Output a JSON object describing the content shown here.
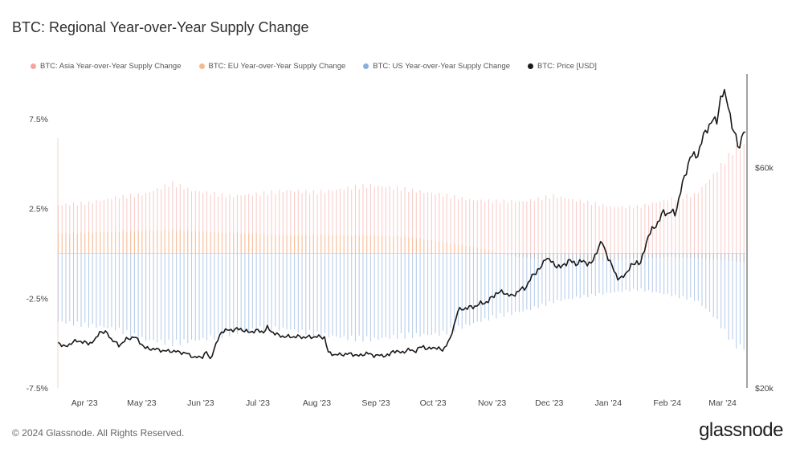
{
  "title": "BTC: Regional Year-over-Year Supply Change",
  "footer": "© 2024 Glassnode. All Rights Reserved.",
  "brand": "glassnode",
  "colors": {
    "asia": "#f4a5a0",
    "eu": "#f5b98a",
    "us": "#8aaee0",
    "price": "#1a1a1a"
  },
  "chart_data": {
    "type": "bar",
    "title": "BTC: Regional Year-over-Year Supply Change",
    "legend": [
      "BTC: Asia Year-over-Year Supply Change",
      "BTC: EU Year-over-Year Supply Change",
      "BTC: US Year-over-Year Supply Change",
      "BTC: Price [USD]"
    ],
    "legend_position": "top-left",
    "grid": false,
    "x_tick_labels": [
      "Apr '23",
      "May '23",
      "Jun '23",
      "Jul '23",
      "Aug '23",
      "Sep '23",
      "Oct '23",
      "Nov '23",
      "Dec '23",
      "Jan '24",
      "Feb '24",
      "Mar '24"
    ],
    "y_left": {
      "range": [
        -7.5,
        10
      ],
      "tick_values": [
        -7.5,
        -2.5,
        2.5,
        7.5
      ],
      "tick_labels": [
        "-7.5%",
        "-2.5%",
        "2.5%",
        "7.5%"
      ]
    },
    "y_right": {
      "range": [
        20000,
        77000
      ],
      "tick_values": [
        20000,
        60000
      ],
      "tick_labels": [
        "$20k",
        "$60k"
      ]
    },
    "x_range_days": [
      0,
      361
    ],
    "series": [
      {
        "name": "BTC: Asia Year-over-Year Supply Change",
        "type": "bar",
        "points": [
          [
            0,
            2.7
          ],
          [
            15,
            2.8
          ],
          [
            30,
            3.1
          ],
          [
            45,
            3.3
          ],
          [
            60,
            3.9
          ],
          [
            70,
            3.5
          ],
          [
            90,
            3.2
          ],
          [
            105,
            3.3
          ],
          [
            120,
            3.5
          ],
          [
            135,
            3.4
          ],
          [
            150,
            3.6
          ],
          [
            165,
            3.8
          ],
          [
            180,
            3.6
          ],
          [
            200,
            3.3
          ],
          [
            215,
            3.0
          ],
          [
            230,
            2.9
          ],
          [
            245,
            2.9
          ],
          [
            260,
            3.2
          ],
          [
            275,
            2.9
          ],
          [
            290,
            2.6
          ],
          [
            305,
            2.6
          ],
          [
            320,
            3.0
          ],
          [
            335,
            3.3
          ],
          [
            345,
            4.5
          ],
          [
            355,
            5.8
          ],
          [
            361,
            6.0
          ]
        ]
      },
      {
        "name": "BTC: EU Year-over-Year Supply Change",
        "type": "bar",
        "points": [
          [
            0,
            1.1
          ],
          [
            30,
            1.2
          ],
          [
            60,
            1.3
          ],
          [
            80,
            1.2
          ],
          [
            100,
            1.1
          ],
          [
            120,
            1.0
          ],
          [
            140,
            1.0
          ],
          [
            165,
            1.0
          ],
          [
            185,
            0.9
          ],
          [
            210,
            0.5
          ],
          [
            225,
            0.2
          ],
          [
            235,
            -0.1
          ],
          [
            250,
            -0.3
          ],
          [
            270,
            -0.4
          ],
          [
            290,
            -0.4
          ],
          [
            300,
            -0.3
          ],
          [
            320,
            -0.2
          ],
          [
            340,
            -0.3
          ],
          [
            361,
            -0.5
          ]
        ]
      },
      {
        "name": "BTC: US Year-over-Year Supply Change",
        "type": "bar",
        "points": [
          [
            0,
            -3.8
          ],
          [
            15,
            -4.0
          ],
          [
            30,
            -4.2
          ],
          [
            45,
            -4.8
          ],
          [
            60,
            -5.0
          ],
          [
            75,
            -4.8
          ],
          [
            90,
            -4.5
          ],
          [
            105,
            -4.2
          ],
          [
            120,
            -4.2
          ],
          [
            135,
            -4.5
          ],
          [
            150,
            -4.7
          ],
          [
            165,
            -4.8
          ],
          [
            180,
            -4.6
          ],
          [
            200,
            -4.5
          ],
          [
            215,
            -4.0
          ],
          [
            230,
            -3.5
          ],
          [
            245,
            -3.2
          ],
          [
            260,
            -2.7
          ],
          [
            275,
            -2.4
          ],
          [
            290,
            -2.2
          ],
          [
            305,
            -2.0
          ],
          [
            320,
            -2.3
          ],
          [
            335,
            -2.6
          ],
          [
            345,
            -3.6
          ],
          [
            355,
            -5.1
          ],
          [
            361,
            -5.3
          ]
        ]
      },
      {
        "name": "BTC: Price [USD]",
        "type": "line",
        "axis": "right",
        "points": [
          [
            0,
            28300
          ],
          [
            4,
            27400
          ],
          [
            8,
            28400
          ],
          [
            12,
            28500
          ],
          [
            16,
            28000
          ],
          [
            20,
            28800
          ],
          [
            22,
            30300
          ],
          [
            26,
            29900
          ],
          [
            28,
            28900
          ],
          [
            32,
            27700
          ],
          [
            36,
            28800
          ],
          [
            40,
            29300
          ],
          [
            42,
            28700
          ],
          [
            46,
            27200
          ],
          [
            52,
            27000
          ],
          [
            56,
            26700
          ],
          [
            60,
            26700
          ],
          [
            64,
            26500
          ],
          [
            68,
            26200
          ],
          [
            72,
            25500
          ],
          [
            76,
            25700
          ],
          [
            78,
            26500
          ],
          [
            80,
            25200
          ],
          [
            82,
            27000
          ],
          [
            86,
            30300
          ],
          [
            90,
            30500
          ],
          [
            96,
            30700
          ],
          [
            100,
            30100
          ],
          [
            104,
            30400
          ],
          [
            108,
            30200
          ],
          [
            110,
            30900
          ],
          [
            112,
            30300
          ],
          [
            116,
            29500
          ],
          [
            120,
            29300
          ],
          [
            126,
            29300
          ],
          [
            130,
            29200
          ],
          [
            136,
            29300
          ],
          [
            140,
            29200
          ],
          [
            142,
            26400
          ],
          [
            146,
            26000
          ],
          [
            150,
            26100
          ],
          [
            154,
            26200
          ],
          [
            158,
            25800
          ],
          [
            162,
            26300
          ],
          [
            166,
            25900
          ],
          [
            170,
            25900
          ],
          [
            174,
            25900
          ],
          [
            176,
            26800
          ],
          [
            180,
            26400
          ],
          [
            184,
            26900
          ],
          [
            188,
            26700
          ],
          [
            190,
            27300
          ],
          [
            192,
            27600
          ],
          [
            194,
            27000
          ],
          [
            198,
            27400
          ],
          [
            202,
            26800
          ],
          [
            204,
            27900
          ],
          [
            206,
            28800
          ],
          [
            210,
            34000
          ],
          [
            214,
            34500
          ],
          [
            218,
            34700
          ],
          [
            222,
            35300
          ],
          [
            226,
            35700
          ],
          [
            230,
            37200
          ],
          [
            234,
            37400
          ],
          [
            238,
            36600
          ],
          [
            242,
            37600
          ],
          [
            246,
            38400
          ],
          [
            250,
            40800
          ],
          [
            254,
            41900
          ],
          [
            256,
            43800
          ],
          [
            260,
            42600
          ],
          [
            264,
            41800
          ],
          [
            268,
            43100
          ],
          [
            272,
            42600
          ],
          [
            276,
            43000
          ],
          [
            280,
            42400
          ],
          [
            284,
            45700
          ],
          [
            286,
            46300
          ],
          [
            288,
            44500
          ],
          [
            290,
            42700
          ],
          [
            294,
            40000
          ],
          [
            296,
            39800
          ],
          [
            300,
            41700
          ],
          [
            304,
            43000
          ],
          [
            306,
            42500
          ],
          [
            310,
            47700
          ],
          [
            314,
            49500
          ],
          [
            318,
            51900
          ],
          [
            320,
            51700
          ],
          [
            322,
            52000
          ],
          [
            324,
            51500
          ],
          [
            328,
            57000
          ],
          [
            332,
            61900
          ],
          [
            336,
            62400
          ],
          [
            340,
            66700
          ],
          [
            344,
            68500
          ],
          [
            346,
            68700
          ],
          [
            348,
            72500
          ],
          [
            350,
            73500
          ],
          [
            352,
            71700
          ],
          [
            354,
            67000
          ],
          [
            356,
            65700
          ],
          [
            358,
            63600
          ],
          [
            360,
            66500
          ],
          [
            361,
            66000
          ]
        ]
      }
    ]
  }
}
